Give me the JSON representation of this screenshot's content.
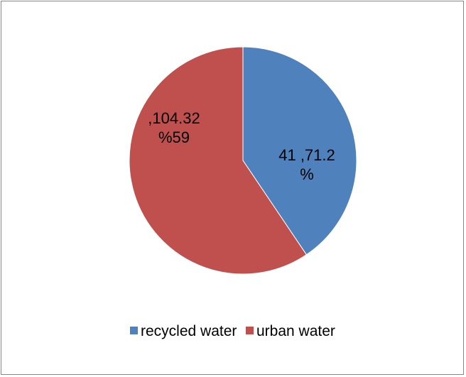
{
  "chart_data": {
    "type": "pie",
    "slices": [
      {
        "name": "recycled water",
        "value": 71.2,
        "percent": 41,
        "label_lines": [
          "41 ,71.2",
          "%"
        ],
        "color": "#4f81bd"
      },
      {
        "name": "urban water",
        "value": 104.32,
        "percent": 59,
        "label_lines": [
          ",104.32",
          "%59"
        ],
        "color": "#c0504d"
      }
    ],
    "start": "12 o'clock",
    "direction": "clockwise",
    "legend": {
      "position": "bottom",
      "entries": [
        "recycled water",
        "urban water"
      ]
    }
  }
}
